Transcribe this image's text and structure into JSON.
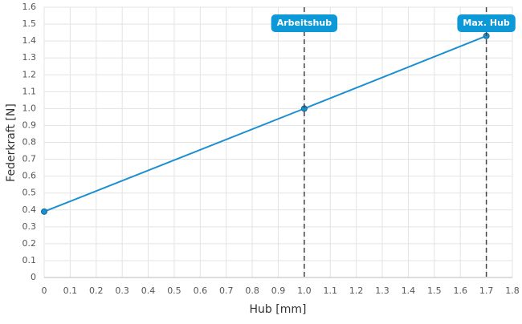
{
  "chart_data": {
    "type": "line",
    "x_label": "Hub [mm]",
    "y_label": "Federkraft [N]",
    "series": [
      {
        "color": "#1a8fd1",
        "x": [
          0,
          1,
          1.7
        ],
        "values": [
          0.39,
          1.0,
          1.43
        ]
      }
    ],
    "annotations": [
      {
        "x": 1,
        "label": "Arbeitshub"
      },
      {
        "x": 1.7,
        "label": "Max. Hub"
      }
    ],
    "annotation_color": "#0d99d8",
    "xlim": [
      0,
      1.8
    ],
    "ylim": [
      0,
      1.6
    ],
    "xticks": [
      0,
      0.1,
      0.2,
      0.3,
      0.4,
      0.5,
      0.6,
      0.7,
      0.8,
      0.9,
      {
        "value": 1,
        "label": "1.0"
      },
      1.1,
      1.2,
      1.3,
      1.4,
      1.5,
      1.6,
      1.7,
      1.8
    ],
    "yticks": [
      0,
      0.1,
      0.2,
      0.3,
      0.4,
      0.5,
      0.6,
      0.7,
      0.8,
      0.9,
      {
        "value": 1,
        "label": "1.0"
      },
      1.1,
      1.2,
      1.3,
      1.4,
      1.5,
      1.6
    ],
    "grid": true
  }
}
